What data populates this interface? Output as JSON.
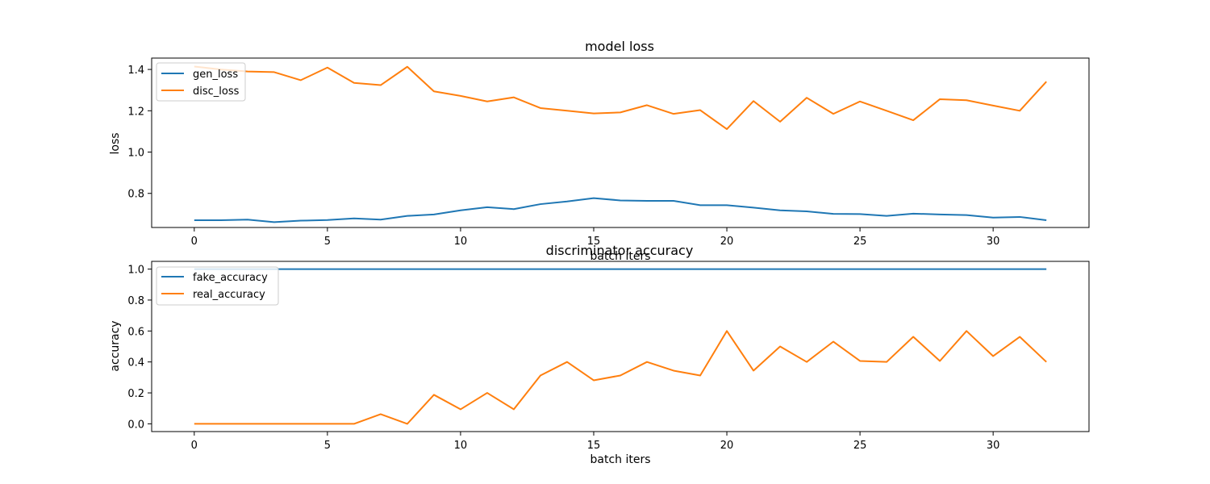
{
  "chart_data": [
    {
      "type": "line",
      "title": "model loss",
      "xlabel": "batch iters",
      "ylabel": "loss",
      "xlim": [
        -1.6,
        33.6
      ],
      "ylim": [
        0.635,
        1.455
      ],
      "xticks": [
        0,
        5,
        10,
        15,
        20,
        25,
        30
      ],
      "yticks": [
        0.8,
        1.0,
        1.2,
        1.4
      ],
      "ytick_labels": [
        "0.8",
        "1.0",
        "1.2",
        "1.4"
      ],
      "grid": false,
      "legend_position": "upper left",
      "x": [
        0,
        1,
        2,
        3,
        4,
        5,
        6,
        7,
        8,
        9,
        10,
        11,
        12,
        13,
        14,
        15,
        16,
        17,
        18,
        19,
        20,
        21,
        22,
        23,
        24,
        25,
        26,
        27,
        28,
        29,
        30,
        31,
        32
      ],
      "series": [
        {
          "name": "gen_loss",
          "color": "#1f77b4",
          "values": [
            0.67,
            0.67,
            0.673,
            0.661,
            0.668,
            0.671,
            0.679,
            0.673,
            0.691,
            0.698,
            0.718,
            0.733,
            0.724,
            0.748,
            0.761,
            0.777,
            0.766,
            0.764,
            0.764,
            0.743,
            0.743,
            0.731,
            0.718,
            0.713,
            0.701,
            0.7,
            0.691,
            0.702,
            0.698,
            0.695,
            0.683,
            0.686,
            0.67
          ]
        },
        {
          "name": "disc_loss",
          "color": "#ff7f0e",
          "values": [
            1.414,
            1.4,
            1.39,
            1.387,
            1.348,
            1.409,
            1.335,
            1.324,
            1.413,
            1.294,
            1.272,
            1.245,
            1.265,
            1.213,
            1.2,
            1.187,
            1.192,
            1.227,
            1.185,
            1.203,
            1.111,
            1.247,
            1.147,
            1.263,
            1.185,
            1.245,
            1.2,
            1.154,
            1.256,
            1.251,
            1.225,
            1.2,
            1.341
          ]
        }
      ]
    },
    {
      "type": "line",
      "title": "discriminator accuracy",
      "xlabel": "batch iters",
      "ylabel": "accuracy",
      "xlim": [
        -1.6,
        33.6
      ],
      "ylim": [
        -0.05,
        1.05
      ],
      "xticks": [
        0,
        5,
        10,
        15,
        20,
        25,
        30
      ],
      "yticks": [
        0.0,
        0.2,
        0.4,
        0.6,
        0.8,
        1.0
      ],
      "ytick_labels": [
        "0.0",
        "0.2",
        "0.4",
        "0.6",
        "0.8",
        "1.0"
      ],
      "grid": false,
      "legend_position": "upper left",
      "x": [
        0,
        1,
        2,
        3,
        4,
        5,
        6,
        7,
        8,
        9,
        10,
        11,
        12,
        13,
        14,
        15,
        16,
        17,
        18,
        19,
        20,
        21,
        22,
        23,
        24,
        25,
        26,
        27,
        28,
        29,
        30,
        31,
        32
      ],
      "series": [
        {
          "name": "fake_accuracy",
          "color": "#1f77b4",
          "values": [
            1,
            1,
            1,
            1,
            1,
            1,
            1,
            1,
            1,
            1,
            1,
            1,
            1,
            1,
            1,
            1,
            1,
            1,
            1,
            1,
            1,
            1,
            1,
            1,
            1,
            1,
            1,
            1,
            1,
            1,
            1,
            1,
            1
          ]
        },
        {
          "name": "real_accuracy",
          "color": "#ff7f0e",
          "values": [
            0.0,
            0.0,
            0.0,
            0.0,
            0.0,
            0.0,
            0.0,
            0.0625,
            0.0,
            0.1875,
            0.09375,
            0.2,
            0.09375,
            0.3125,
            0.4,
            0.28125,
            0.3125,
            0.4,
            0.34375,
            0.3125,
            0.6,
            0.34375,
            0.5,
            0.4,
            0.53125,
            0.40625,
            0.4,
            0.5625,
            0.40625,
            0.6,
            0.4375,
            0.5625,
            0.4
          ]
        }
      ]
    }
  ]
}
